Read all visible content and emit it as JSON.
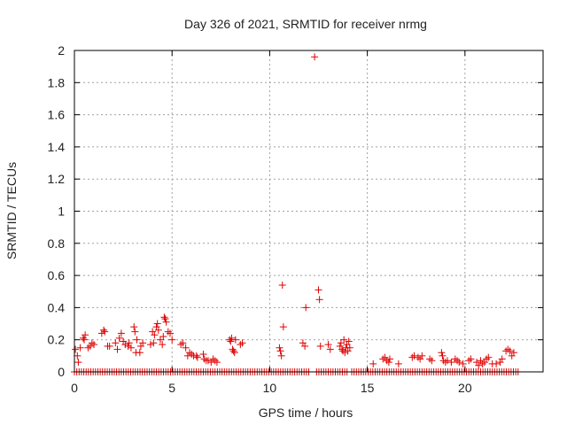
{
  "chart_data": {
    "type": "scatter",
    "title": "Day 326 of 2021, SRMTID for receiver nrmg",
    "xlabel": "GPS time / hours",
    "ylabel": "SRMTID / TECUs",
    "xlim": [
      0,
      24
    ],
    "ylim": [
      0,
      2
    ],
    "xticks": [
      0,
      5,
      10,
      15,
      20
    ],
    "yticks": [
      0,
      0.2,
      0.4,
      0.6,
      0.8,
      1,
      1.2,
      1.4,
      1.6,
      1.8,
      2
    ],
    "grid": true,
    "marker": "+",
    "series": [
      {
        "name": "SRMTID",
        "color": "#e00000",
        "points": [
          [
            0.05,
            0.14
          ],
          [
            0.15,
            0.1
          ],
          [
            0.2,
            0.06
          ],
          [
            0.3,
            0.15
          ],
          [
            0.45,
            0.21
          ],
          [
            0.5,
            0.2
          ],
          [
            0.55,
            0.23
          ],
          [
            0.7,
            0.15
          ],
          [
            0.8,
            0.16
          ],
          [
            0.9,
            0.18
          ],
          [
            1.0,
            0.17
          ],
          [
            1.4,
            0.24
          ],
          [
            1.5,
            0.26
          ],
          [
            1.55,
            0.25
          ],
          [
            1.7,
            0.16
          ],
          [
            1.8,
            0.16
          ],
          [
            2.1,
            0.18
          ],
          [
            2.2,
            0.14
          ],
          [
            2.3,
            0.21
          ],
          [
            2.4,
            0.24
          ],
          [
            2.5,
            0.19
          ],
          [
            2.6,
            0.17
          ],
          [
            2.75,
            0.16
          ],
          [
            2.8,
            0.18
          ],
          [
            2.9,
            0.15
          ],
          [
            3.05,
            0.28
          ],
          [
            3.1,
            0.25
          ],
          [
            3.15,
            0.12
          ],
          [
            3.2,
            0.2
          ],
          [
            3.35,
            0.12
          ],
          [
            3.4,
            0.16
          ],
          [
            3.5,
            0.18
          ],
          [
            3.9,
            0.17
          ],
          [
            4.0,
            0.25
          ],
          [
            4.05,
            0.18
          ],
          [
            4.1,
            0.23
          ],
          [
            4.2,
            0.28
          ],
          [
            4.25,
            0.3
          ],
          [
            4.3,
            0.26
          ],
          [
            4.4,
            0.2
          ],
          [
            4.5,
            0.17
          ],
          [
            4.55,
            0.22
          ],
          [
            4.6,
            0.34
          ],
          [
            4.65,
            0.33
          ],
          [
            4.7,
            0.31
          ],
          [
            4.8,
            0.25
          ],
          [
            4.9,
            0.24
          ],
          [
            5.0,
            0.2
          ],
          [
            5.45,
            0.17
          ],
          [
            5.55,
            0.18
          ],
          [
            5.7,
            0.15
          ],
          [
            5.8,
            0.1
          ],
          [
            5.9,
            0.12
          ],
          [
            6.0,
            0.11
          ],
          [
            6.1,
            0.1
          ],
          [
            6.25,
            0.1
          ],
          [
            6.3,
            0.09
          ],
          [
            6.6,
            0.11
          ],
          [
            6.65,
            0.08
          ],
          [
            6.75,
            0.07
          ],
          [
            6.85,
            0.07
          ],
          [
            7.0,
            0.06
          ],
          [
            7.1,
            0.08
          ],
          [
            7.2,
            0.07
          ],
          [
            7.3,
            0.06
          ],
          [
            7.95,
            0.2
          ],
          [
            8.0,
            0.19
          ],
          [
            8.05,
            0.21
          ],
          [
            8.1,
            0.14
          ],
          [
            8.15,
            0.13
          ],
          [
            8.2,
            0.12
          ],
          [
            8.25,
            0.2
          ],
          [
            8.5,
            0.17
          ],
          [
            8.6,
            0.18
          ],
          [
            10.5,
            0.15
          ],
          [
            10.55,
            0.13
          ],
          [
            10.6,
            0.1
          ],
          [
            10.65,
            0.54
          ],
          [
            10.7,
            0.28
          ],
          [
            11.7,
            0.18
          ],
          [
            11.8,
            0.16
          ],
          [
            11.85,
            0.4
          ],
          [
            12.3,
            1.96
          ],
          [
            12.5,
            0.51
          ],
          [
            12.55,
            0.45
          ],
          [
            12.6,
            0.16
          ],
          [
            13.0,
            0.17
          ],
          [
            13.1,
            0.14
          ],
          [
            13.6,
            0.16
          ],
          [
            13.65,
            0.18
          ],
          [
            13.7,
            0.14
          ],
          [
            13.75,
            0.13
          ],
          [
            13.8,
            0.2
          ],
          [
            13.85,
            0.12
          ],
          [
            13.9,
            0.15
          ],
          [
            13.95,
            0.17
          ],
          [
            14.0,
            0.13
          ],
          [
            14.05,
            0.19
          ],
          [
            14.1,
            0.15
          ],
          [
            15.3,
            0.05
          ],
          [
            15.8,
            0.08
          ],
          [
            15.9,
            0.09
          ],
          [
            16.0,
            0.07
          ],
          [
            16.1,
            0.06
          ],
          [
            16.15,
            0.08
          ],
          [
            16.6,
            0.05
          ],
          [
            17.3,
            0.09
          ],
          [
            17.4,
            0.1
          ],
          [
            17.6,
            0.09
          ],
          [
            17.7,
            0.08
          ],
          [
            17.8,
            0.1
          ],
          [
            18.2,
            0.08
          ],
          [
            18.3,
            0.07
          ],
          [
            18.8,
            0.12
          ],
          [
            18.85,
            0.1
          ],
          [
            18.9,
            0.07
          ],
          [
            19.0,
            0.06
          ],
          [
            19.1,
            0.07
          ],
          [
            19.3,
            0.06
          ],
          [
            19.5,
            0.08
          ],
          [
            19.6,
            0.07
          ],
          [
            19.7,
            0.06
          ],
          [
            19.9,
            0.05
          ],
          [
            20.2,
            0.07
          ],
          [
            20.3,
            0.08
          ],
          [
            20.6,
            0.06
          ],
          [
            20.7,
            0.04
          ],
          [
            20.8,
            0.07
          ],
          [
            20.9,
            0.05
          ],
          [
            21.0,
            0.06
          ],
          [
            21.1,
            0.08
          ],
          [
            21.2,
            0.09
          ],
          [
            21.4,
            0.05
          ],
          [
            21.6,
            0.05
          ],
          [
            21.8,
            0.06
          ],
          [
            21.9,
            0.08
          ],
          [
            22.1,
            0.13
          ],
          [
            22.2,
            0.14
          ],
          [
            22.3,
            0.13
          ],
          [
            22.4,
            0.1
          ],
          [
            22.5,
            0.12
          ]
        ],
        "zero_segments": [
          [
            0.0,
            12.0
          ],
          [
            12.4,
            14.0
          ],
          [
            14.2,
            22.8
          ]
        ],
        "zero_step": 0.12
      }
    ]
  }
}
